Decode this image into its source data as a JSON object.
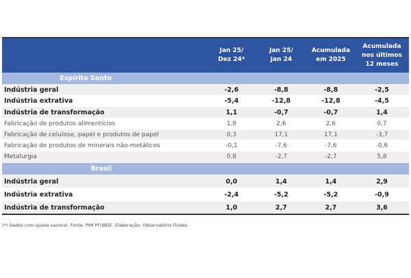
{
  "columns": [
    "Jan 25/\nDez 24*",
    "Jan 25/\nJan 24",
    "Acumulada\nem 2025",
    "Acumulada\nnos últimos\n12 meses"
  ],
  "sections": [
    {
      "title": "Espírito Santo",
      "rows": [
        {
          "label": "Indústria geral",
          "bold": true,
          "values": [
            "-2,6",
            "-8,8",
            "-8,8",
            "-2,5"
          ]
        },
        {
          "label": "Indústria extrativa",
          "bold": true,
          "values": [
            "-5,4",
            "-12,8",
            "-12,8",
            "-4,5"
          ]
        },
        {
          "label": "Indústria de transformação",
          "bold": true,
          "values": [
            "1,1",
            "-0,7",
            "-0,7",
            "1,4"
          ]
        },
        {
          "label": "Fabricação de produtos alimentícios",
          "bold": false,
          "values": [
            "1,8",
            "2,6",
            "2,6",
            "0,7"
          ]
        },
        {
          "label": "Fabricação de celulose, papel e produtos de papel",
          "bold": false,
          "values": [
            "0,3",
            "17,1",
            "17,1",
            "-3,7"
          ]
        },
        {
          "label": "Fabricação de produtos de minerais não-metálicos",
          "bold": false,
          "values": [
            "-0,1",
            "-7,6",
            "-7,6",
            "-0,6"
          ]
        },
        {
          "label": "Metalurgia",
          "bold": false,
          "values": [
            "0,8",
            "-2,7",
            "-2,7",
            "5,8"
          ]
        }
      ]
    },
    {
      "title": "Brasil",
      "rows": [
        {
          "label": "Indústria geral",
          "bold": true,
          "values": [
            "0,0",
            "1,4",
            "1,4",
            "2,9"
          ]
        },
        {
          "label": "Indústria extrativa",
          "bold": true,
          "values": [
            "-2,4",
            "-5,2",
            "-5,2",
            "-0,9"
          ]
        },
        {
          "label": "Indústria de transformação",
          "bold": true,
          "values": [
            "1,0",
            "2,7",
            "2,7",
            "3,6"
          ]
        }
      ]
    }
  ],
  "footnote": "(*) Dados com ajuste sazonal. Fonte: PIM PF/IBGE. Elaboração: Observatório Findes.",
  "colors": {
    "header": "#2f55a0",
    "section": "#a4b7e1"
  }
}
